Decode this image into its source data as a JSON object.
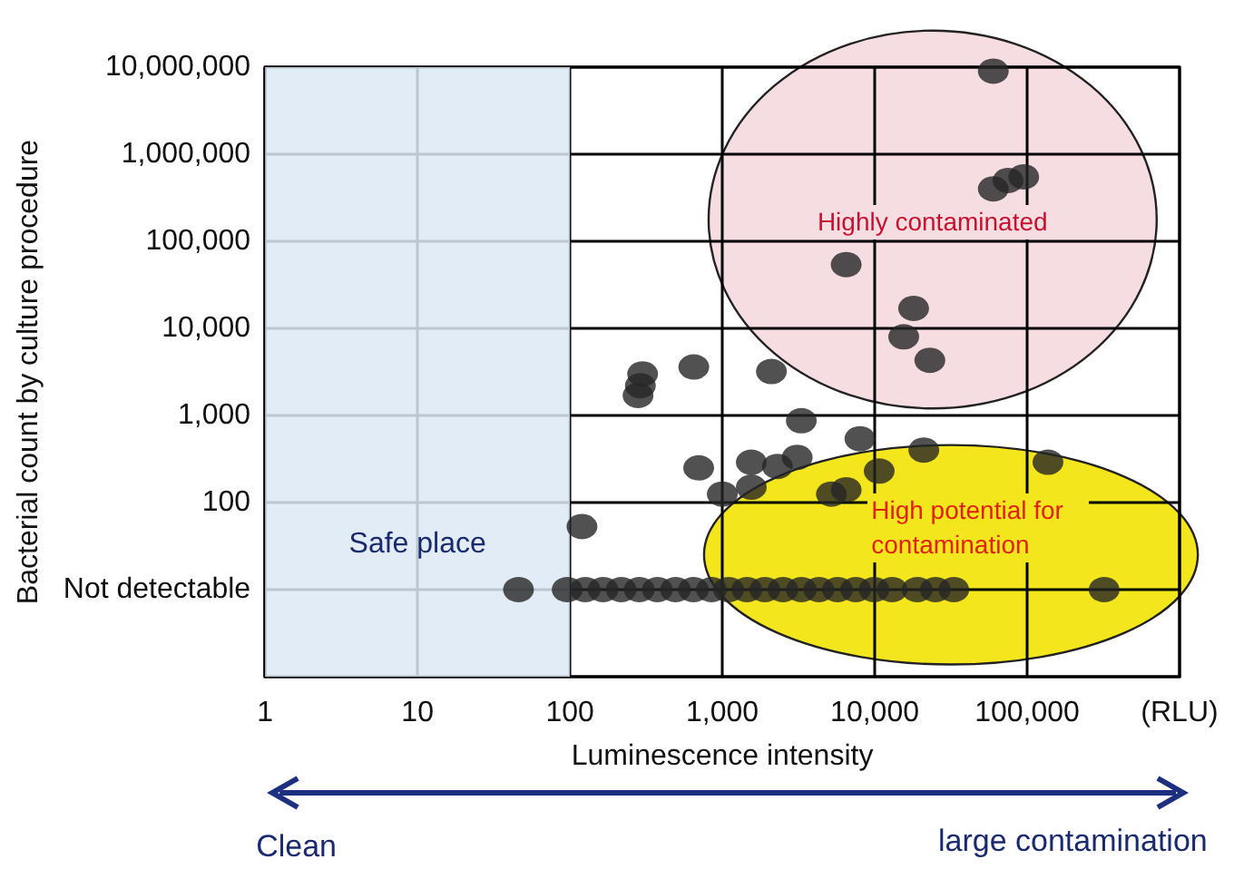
{
  "chart_data": {
    "type": "scatter",
    "xlabel": "Luminescence intensity",
    "ylabel": "Bacterial count by culture procedure",
    "series": [
      {
        "color": "#262626",
        "x": [
          60000,
          75000,
          95000,
          60000,
          6500,
          18000,
          15500,
          23000,
          2100,
          650,
          300,
          280,
          290,
          3300,
          8000,
          21000,
          137000,
          700,
          1000,
          1550,
          1550,
          2300,
          3100,
          5200,
          6500,
          10700,
          120,
          46,
          96,
          126,
          165,
          217,
          285,
          375,
          493,
          647,
          850,
          1100,
          1450,
          1900,
          2500,
          3300,
          4300,
          5700,
          7500,
          9900,
          13000,
          19000,
          25000,
          33000,
          320000
        ],
        "values": [
          400000,
          500000,
          550000,
          9000000,
          54000,
          17000,
          8000,
          4300,
          3200,
          3600,
          3000,
          1700,
          2200,
          870,
          540,
          400,
          290,
          250,
          125,
          150,
          290,
          260,
          330,
          125,
          140,
          230,
          53,
          10,
          10,
          10,
          10,
          10,
          10,
          10,
          10,
          10,
          10,
          10,
          10,
          10,
          10,
          10,
          10,
          10,
          10,
          10,
          10,
          10,
          10,
          10,
          10
        ]
      }
    ],
    "xlim": [
      1,
      1000000
    ],
    "ylim": [
      1,
      10000000
    ],
    "xticks": [
      1,
      10,
      100,
      {
        "value": 1000,
        "label": "1,000"
      },
      {
        "value": 10000,
        "label": "10,000"
      },
      {
        "value": 100000,
        "label": "100,000"
      },
      {
        "value": 1000000,
        "label": "(RLU)"
      }
    ],
    "yticks": [
      {
        "value": 10,
        "label": "Not detectable"
      },
      100,
      {
        "value": 1000,
        "label": "1,000"
      },
      {
        "value": 10000,
        "label": "10,000"
      },
      {
        "value": 100000,
        "label": "100,000"
      },
      {
        "value": 1000000,
        "label": "1,000,000"
      },
      {
        "value": 10000000,
        "label": "10,000,000"
      }
    ],
    "log": "xy",
    "grid": true,
    "marker": "circle",
    "bands": [
      {
        "axis": "x",
        "from": 1,
        "to": 100,
        "label": "Safe place",
        "color": "#dce9f5"
      }
    ],
    "annotations": [
      "Highly contaminated",
      "High potential for contamination",
      "Clean",
      "large contamination"
    ]
  }
}
